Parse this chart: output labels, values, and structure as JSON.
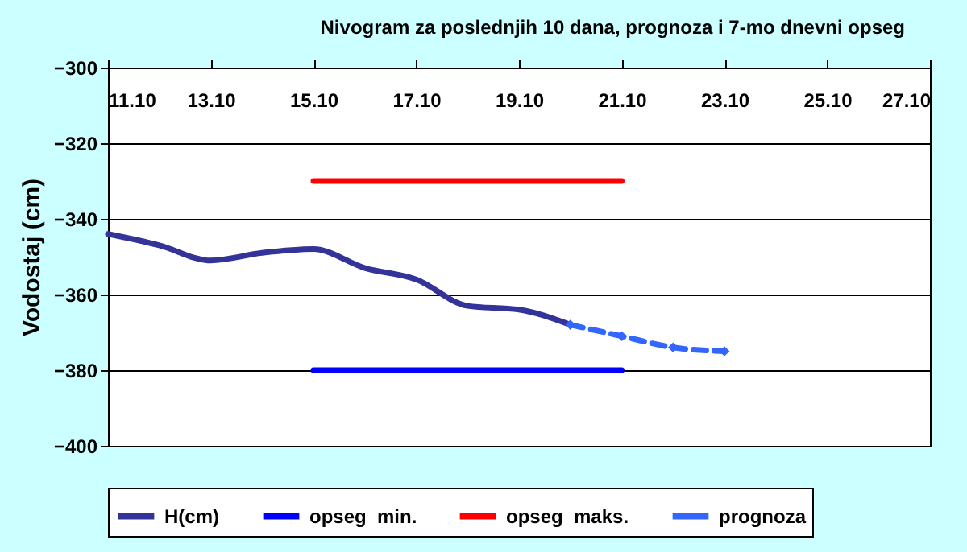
{
  "chart_data": {
    "type": "line",
    "title": "Nivogram za poslednjih 10 dana, prognoza i 7-mo dnevni opseg",
    "ylabel": "Vodostaj (cm)",
    "xlim": [
      "--10-11",
      "--10-27"
    ],
    "xticks": [
      {
        "value": "--10-11",
        "label": "11.10"
      },
      {
        "value": "--10-13",
        "label": "13.10"
      },
      {
        "value": "--10-15",
        "label": "15.10"
      },
      {
        "value": "--10-17",
        "label": "17.10"
      },
      {
        "value": "--10-19",
        "label": "19.10"
      },
      {
        "value": "--10-21",
        "label": "21.10"
      },
      {
        "value": "--10-23",
        "label": "23.10"
      },
      {
        "value": "--10-25",
        "label": "25.10"
      },
      {
        "value": "--10-27",
        "label": "27.10"
      }
    ],
    "ylim": [
      -400,
      -300
    ],
    "yticks": [
      -400,
      -380,
      -360,
      -340,
      -320,
      -300
    ],
    "grid": "y",
    "legend": "bottom",
    "series": [
      {
        "name": "H(cm)",
        "color": "#333399",
        "x": [
          "--10-11",
          "--10-12",
          "--10-13",
          "--10-14",
          "--10-15",
          "--10-16",
          "--10-17",
          "--10-18",
          "--10-19",
          "--10-20"
        ],
        "values": [
          -344,
          -347,
          -351,
          -349,
          -348,
          -353,
          -356,
          -363,
          -364,
          -368
        ]
      },
      {
        "name": "opseg_min.",
        "color": "#0000ff",
        "x": [
          "--10-15",
          "--10-21"
        ],
        "values": [
          -380,
          -380
        ]
      },
      {
        "name": "opseg_maks.",
        "color": "#ff0000",
        "x": [
          "--10-15",
          "--10-21"
        ],
        "values": [
          -330,
          -330
        ]
      },
      {
        "name": "prognoza",
        "color": "#3366ff",
        "marker": "diamond",
        "line_style": "dashed",
        "x": [
          "--10-20",
          "--10-21",
          "--10-22",
          "--10-23"
        ],
        "values": [
          -368,
          -371,
          -374,
          -375
        ]
      }
    ]
  }
}
